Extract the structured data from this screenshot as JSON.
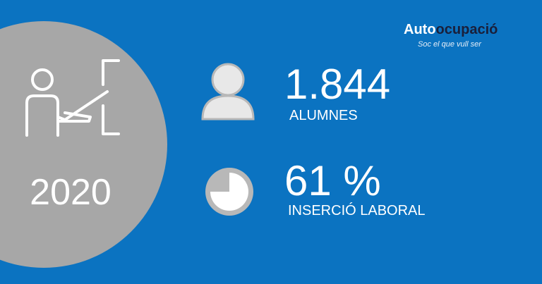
{
  "logo": {
    "brand_first": "Auto",
    "brand_second": "ocupació",
    "tagline": "Soc el que vull ser"
  },
  "year": "2020",
  "stats": [
    {
      "value": "1.844",
      "label": "ALUMNES"
    },
    {
      "value": "61 %",
      "label": "INSERCIÓ LABORAL"
    }
  ]
}
